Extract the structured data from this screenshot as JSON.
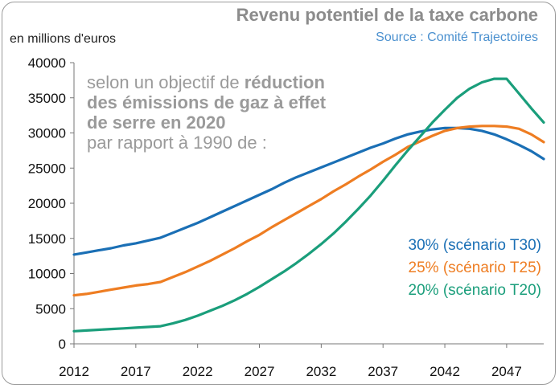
{
  "title": "Revenu potentiel de la taxe carbone",
  "source": "Source : Comité Trajectoires",
  "unit_label": "en millions d'euros",
  "annotation": {
    "line1": "selon un objectif de ",
    "line1_bold": "réduction",
    "line2_bold": "des émissions de gaz à effet",
    "line3_bold": "de serre en 2020",
    "line4": "par rapport à 1990 de :"
  },
  "legend": [
    {
      "label": "30% (scénario T30)",
      "color": "#1a6fb5"
    },
    {
      "label": "25% (scénario T25)",
      "color": "#ee7d22"
    },
    {
      "label": "20% (scénario T20)",
      "color": "#1a9e7b"
    }
  ],
  "chart_data": {
    "type": "line",
    "x": [
      2012,
      2013,
      2014,
      2015,
      2016,
      2017,
      2018,
      2019,
      2020,
      2021,
      2022,
      2023,
      2024,
      2025,
      2026,
      2027,
      2028,
      2029,
      2030,
      2031,
      2032,
      2033,
      2034,
      2035,
      2036,
      2037,
      2038,
      2039,
      2040,
      2041,
      2042,
      2043,
      2044,
      2045,
      2046,
      2047,
      2048,
      2049,
      2050
    ],
    "xticks": [
      2012,
      2017,
      2022,
      2027,
      2032,
      2037,
      2042,
      2047
    ],
    "xlim": [
      2012,
      2050
    ],
    "ylim": [
      0,
      40000
    ],
    "yticks": [
      0,
      5000,
      10000,
      15000,
      20000,
      25000,
      30000,
      35000,
      40000
    ],
    "series": [
      {
        "name": "30% (scénario T30)",
        "color": "#1a6fb5",
        "values": [
          12700,
          13000,
          13300,
          13600,
          14000,
          14300,
          14700,
          15100,
          15800,
          16500,
          17200,
          18000,
          18800,
          19600,
          20400,
          21200,
          22000,
          22900,
          23700,
          24400,
          25100,
          25800,
          26500,
          27200,
          27900,
          28500,
          29200,
          29800,
          30200,
          30500,
          30700,
          30700,
          30600,
          30300,
          29800,
          29100,
          28300,
          27400,
          26300
        ]
      },
      {
        "name": "25% (scénario T25)",
        "color": "#ee7d22",
        "values": [
          6900,
          7100,
          7400,
          7700,
          8000,
          8300,
          8500,
          8800,
          9500,
          10200,
          11000,
          11800,
          12700,
          13600,
          14600,
          15500,
          16600,
          17600,
          18600,
          19600,
          20600,
          21700,
          22700,
          23800,
          24800,
          25900,
          26900,
          28000,
          28800,
          29600,
          30300,
          30700,
          30900,
          31000,
          31000,
          30900,
          30600,
          29800,
          28700
        ]
      },
      {
        "name": "20% (scénario T20)",
        "color": "#1a9e7b",
        "values": [
          1800,
          1900,
          2000,
          2100,
          2200,
          2300,
          2400,
          2500,
          2900,
          3400,
          4000,
          4700,
          5400,
          6200,
          7100,
          8100,
          9200,
          10300,
          11500,
          12800,
          14200,
          15700,
          17400,
          19200,
          21100,
          23200,
          25400,
          27500,
          29500,
          31500,
          33300,
          35000,
          36300,
          37200,
          37700,
          37700,
          35600,
          33500,
          31500
        ]
      }
    ]
  }
}
